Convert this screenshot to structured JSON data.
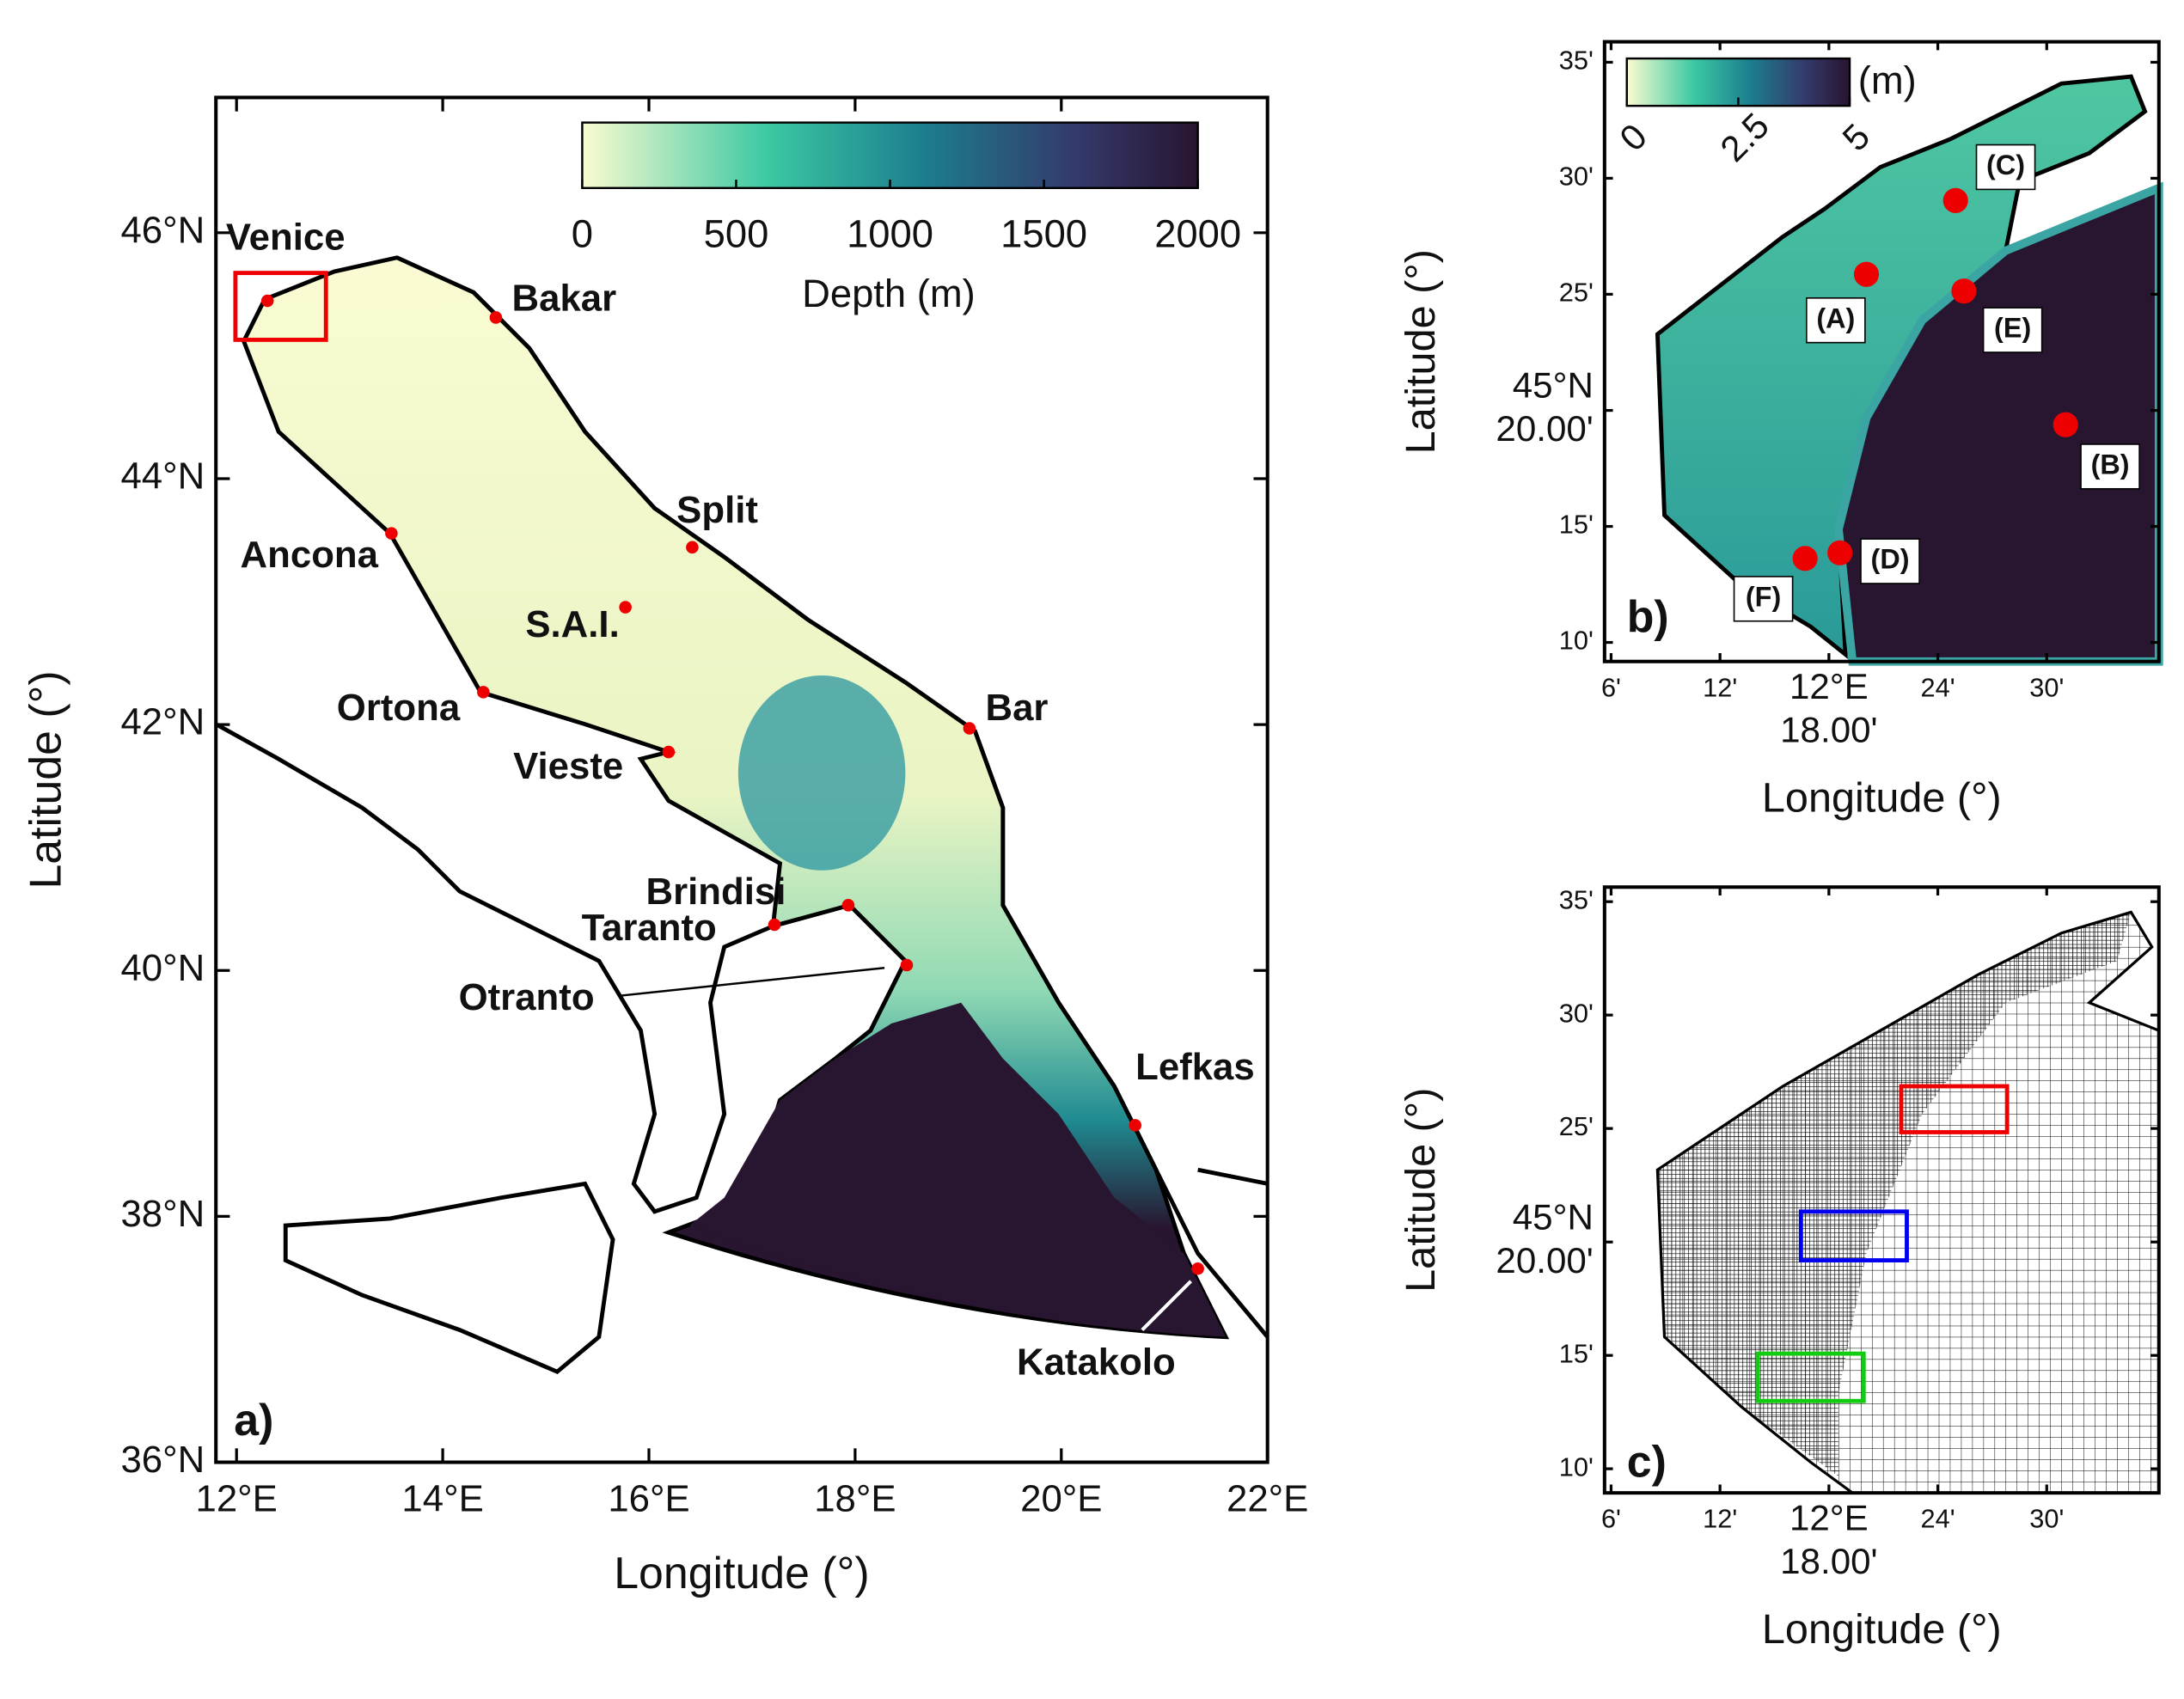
{
  "panel_a": {
    "panel_label": "a)",
    "xlabel": "Longitude (°)",
    "ylabel": "Latitude (°)",
    "xlim": [
      11.8,
      22
    ],
    "ylim": [
      36,
      47.1
    ],
    "xticks": [
      {
        "value": 12,
        "label": "12°E"
      },
      {
        "value": 14,
        "label": "14°E"
      },
      {
        "value": 16,
        "label": "16°E"
      },
      {
        "value": 18,
        "label": "18°E"
      },
      {
        "value": 20,
        "label": "20°E"
      },
      {
        "value": 22,
        "label": "22°E"
      }
    ],
    "yticks": [
      {
        "value": 36,
        "label": "36°N"
      },
      {
        "value": 38,
        "label": "38°N"
      },
      {
        "value": 40,
        "label": "40°N"
      },
      {
        "value": 42,
        "label": "42°N"
      },
      {
        "value": 44,
        "label": "44°N"
      },
      {
        "value": 46,
        "label": "46°N"
      }
    ],
    "colorbar": {
      "label": "Depth (m)",
      "lim": [
        0,
        2000
      ],
      "ticks": [
        0,
        500,
        1000,
        1500,
        2000
      ]
    },
    "places": [
      "Venice",
      "Bakar",
      "Split",
      "Ancona",
      "S.A.I.",
      "Ortona",
      "Bar",
      "Vieste",
      "Brindisi",
      "Taranto",
      "Otranto",
      "Lefkas",
      "Katakolo"
    ]
  },
  "panel_b": {
    "panel_label": "b)",
    "xlabel": "Longitude (°)",
    "ylabel": "Latitude (°)",
    "xlim": [
      12.094,
      12.603
    ],
    "ylim": [
      45.153,
      45.598
    ],
    "xticks": [
      {
        "value": 12.1,
        "label": "6'"
      },
      {
        "value": 12.2,
        "label": "12'"
      },
      {
        "value": 12.3,
        "label": "12°E\n18.00'"
      },
      {
        "value": 12.4,
        "label": "24'"
      },
      {
        "value": 12.5,
        "label": "30'"
      }
    ],
    "yticks": [
      {
        "value": 45.1667,
        "label": "10'"
      },
      {
        "value": 45.25,
        "label": "15'"
      },
      {
        "value": 45.3333,
        "label": "45°N\n20.00'"
      },
      {
        "value": 45.4167,
        "label": "25'"
      },
      {
        "value": 45.5,
        "label": "30'"
      },
      {
        "value": 45.5833,
        "label": "35'"
      }
    ],
    "colorbar": {
      "label": "(m)",
      "lim": [
        0,
        5
      ],
      "ticks": [
        0,
        2.5,
        5
      ]
    },
    "stations": [
      "(A)",
      "(B)",
      "(C)",
      "(D)",
      "(E)",
      "(F)"
    ]
  },
  "panel_c": {
    "panel_label": "c)",
    "xlabel": "Longitude (°)",
    "ylabel": "Latitude (°)",
    "xlim": [
      12.094,
      12.603
    ],
    "ylim": [
      45.149,
      45.594
    ],
    "xticks": [
      {
        "value": 12.1,
        "label": "6'"
      },
      {
        "value": 12.2,
        "label": "12'"
      },
      {
        "value": 12.3,
        "label": "12°E\n18.00'"
      },
      {
        "value": 12.4,
        "label": "24'"
      },
      {
        "value": 12.5,
        "label": "30'"
      }
    ],
    "yticks": [
      {
        "value": 45.1667,
        "label": "10'"
      },
      {
        "value": 45.25,
        "label": "15'"
      },
      {
        "value": 45.3333,
        "label": "45°N\n20.00'"
      },
      {
        "value": 45.4167,
        "label": "25'"
      },
      {
        "value": 45.5,
        "label": "30'"
      },
      {
        "value": 45.5833,
        "label": "35'"
      }
    ]
  }
}
